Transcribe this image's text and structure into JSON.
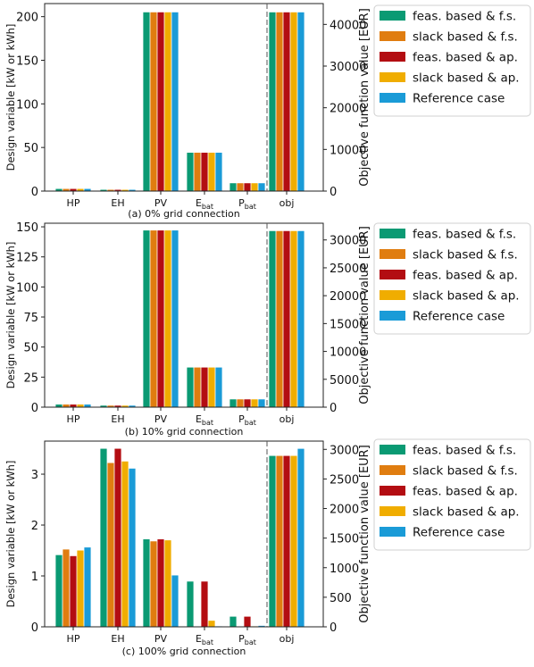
{
  "legend": {
    "entries": [
      {
        "name": "feas. based & f.s.",
        "color": "#0a9a73"
      },
      {
        "name": "slack based & f.s.",
        "color": "#e07d10"
      },
      {
        "name": "feas. based & ap.",
        "color": "#b30d12"
      },
      {
        "name": "slack based & ap.",
        "color": "#f0ad00"
      },
      {
        "name": "Reference case",
        "color": "#1a9bd7"
      }
    ]
  },
  "chart_data": [
    {
      "type": "bar",
      "caption": "(a) 0% grid connection",
      "categories": [
        "HP",
        "EH",
        "PV",
        "E",
        "P",
        "obj"
      ],
      "category_subscripts": [
        "",
        "",
        "",
        "bat",
        "bat",
        ""
      ],
      "ylabel": "Design variable [kW or kWh]",
      "ylabel_right": "Objective function value [EUR]",
      "ylim": [
        0,
        215
      ],
      "yticks": [
        0,
        50,
        100,
        150,
        200
      ],
      "ylim_right": [
        0,
        45000
      ],
      "yticks_right": [
        0,
        10000,
        20000,
        30000,
        40000
      ],
      "series": [
        {
          "name": "feas. based & f.s.",
          "values": [
            2.5,
            1.5,
            205,
            44,
            9,
            42900
          ]
        },
        {
          "name": "slack based & f.s.",
          "values": [
            2.5,
            1.5,
            205,
            44,
            9,
            42900
          ]
        },
        {
          "name": "feas. based & ap.",
          "values": [
            2.5,
            1.5,
            205,
            44,
            9,
            42900
          ]
        },
        {
          "name": "slack based & ap.",
          "values": [
            2.5,
            1.5,
            205,
            44,
            9,
            42900
          ]
        },
        {
          "name": "Reference case",
          "values": [
            2.5,
            1.5,
            205,
            44,
            9,
            42900
          ]
        }
      ]
    },
    {
      "type": "bar",
      "caption": "(b) 10% grid connection",
      "categories": [
        "HP",
        "EH",
        "PV",
        "E",
        "P",
        "obj"
      ],
      "category_subscripts": [
        "",
        "",
        "",
        "bat",
        "bat",
        ""
      ],
      "ylabel": "Design variable [kW or kWh]",
      "ylabel_right": "Objective function value [EUR]",
      "ylim": [
        0,
        153
      ],
      "yticks": [
        0,
        25,
        50,
        75,
        100,
        125,
        150
      ],
      "ylim_right": [
        0,
        33000
      ],
      "yticks_right": [
        0,
        5000,
        10000,
        15000,
        20000,
        25000,
        30000
      ],
      "series": [
        {
          "name": "feas. based & f.s.",
          "values": [
            2.2,
            1.3,
            147,
            33,
            6.5,
            31600
          ]
        },
        {
          "name": "slack based & f.s.",
          "values": [
            2.2,
            1.3,
            147,
            33,
            6.5,
            31600
          ]
        },
        {
          "name": "feas. based & ap.",
          "values": [
            2.2,
            1.3,
            147,
            33,
            6.5,
            31600
          ]
        },
        {
          "name": "slack based & ap.",
          "values": [
            2.2,
            1.3,
            147,
            33,
            6.5,
            31600
          ]
        },
        {
          "name": "Reference case",
          "values": [
            2.2,
            1.3,
            147,
            33,
            6.5,
            31600
          ]
        }
      ]
    },
    {
      "type": "bar",
      "caption": "(c) 100% grid connection",
      "categories": [
        "HP",
        "EH",
        "PV",
        "E",
        "P",
        "obj"
      ],
      "category_subscripts": [
        "",
        "",
        "",
        "bat",
        "bat",
        ""
      ],
      "ylabel": "Design variable [kW or kWh]",
      "ylabel_right": "Objective function value [EUR]",
      "ylim": [
        0,
        3.65
      ],
      "yticks": [
        0,
        1,
        2,
        3
      ],
      "ylim_right": [
        0,
        3140
      ],
      "yticks_right": [
        0,
        500,
        1000,
        1500,
        2000,
        2500,
        3000
      ],
      "series": [
        {
          "name": "feas. based & f.s.",
          "values": [
            1.41,
            3.5,
            1.72,
            0.89,
            0.2,
            2890
          ]
        },
        {
          "name": "slack based & f.s.",
          "values": [
            1.52,
            3.22,
            1.68,
            0.0,
            0.0,
            2890
          ]
        },
        {
          "name": "feas. based & ap.",
          "values": [
            1.39,
            3.5,
            1.72,
            0.89,
            0.2,
            2890
          ]
        },
        {
          "name": "slack based & ap.",
          "values": [
            1.5,
            3.25,
            1.7,
            0.12,
            0.01,
            2890
          ]
        },
        {
          "name": "Reference case",
          "values": [
            1.56,
            3.11,
            1.01,
            0.01,
            0.02,
            3010
          ]
        }
      ]
    }
  ]
}
